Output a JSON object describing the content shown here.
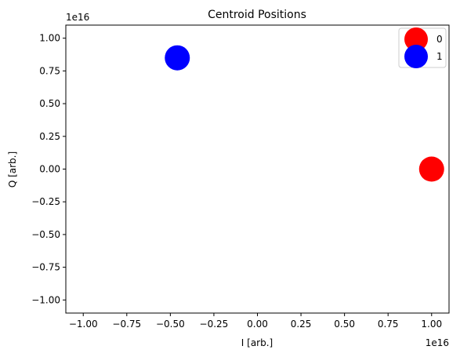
{
  "chart_data": {
    "type": "scatter",
    "title": "Centroid Positions",
    "xlabel": "I [arb.]",
    "ylabel": "Q [arb.]",
    "x_offset_label": "1e16",
    "y_offset_label": "1e16",
    "xlim": [
      -1.1,
      1.1
    ],
    "ylim": [
      -1.1,
      1.1
    ],
    "xticks": [
      "−1.00",
      "−0.75",
      "−0.50",
      "−0.25",
      "0.00",
      "0.25",
      "0.50",
      "0.75",
      "1.00"
    ],
    "xtick_values": [
      -1.0,
      -0.75,
      -0.5,
      -0.25,
      0.0,
      0.25,
      0.5,
      0.75,
      1.0
    ],
    "yticks": [
      "−1.00",
      "−0.75",
      "−0.50",
      "−0.25",
      "0.00",
      "0.25",
      "0.50",
      "0.75",
      "1.00"
    ],
    "ytick_values": [
      -1.0,
      -0.75,
      -0.5,
      -0.25,
      0.0,
      0.25,
      0.5,
      0.75,
      1.0
    ],
    "grid": false,
    "legend_position": "top-right",
    "series": [
      {
        "name": "0",
        "color": "#ff0000",
        "points": [
          {
            "x": 1.0,
            "y": 0.0
          }
        ]
      },
      {
        "name": "1",
        "color": "#0000ff",
        "points": [
          {
            "x": -0.46,
            "y": 0.85
          }
        ]
      }
    ]
  }
}
